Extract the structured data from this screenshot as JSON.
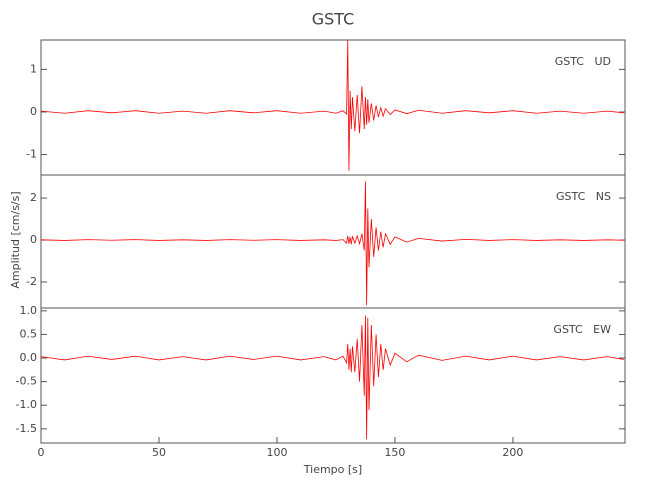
{
  "chart_data": [
    {
      "type": "line",
      "title": "GSTC",
      "annotation": "GSTC   UD",
      "x": [
        0,
        10,
        20,
        30,
        40,
        50,
        60,
        70,
        80,
        90,
        100,
        110,
        120,
        125,
        128,
        129.5,
        130,
        130.5,
        131,
        131.5,
        132,
        133,
        134,
        135,
        136,
        137,
        137.5,
        138,
        138.5,
        139,
        140,
        141,
        142,
        143,
        144,
        145,
        146,
        148,
        150,
        155,
        160,
        170,
        180,
        190,
        200,
        210,
        220,
        230,
        240,
        247
      ],
      "series": [
        {
          "color": "#ff0000",
          "values": [
            0.02,
            -0.03,
            0.03,
            -0.02,
            0.03,
            -0.03,
            0.02,
            -0.03,
            0.03,
            -0.02,
            0.03,
            -0.03,
            0.02,
            -0.03,
            0.03,
            -0.05,
            1.68,
            -1.38,
            0.5,
            -0.4,
            0.35,
            -0.45,
            0.4,
            -0.5,
            0.6,
            -0.4,
            0.35,
            -0.3,
            0.3,
            -0.25,
            0.2,
            -0.2,
            0.15,
            -0.12,
            0.1,
            -0.1,
            0.08,
            -0.06,
            0.05,
            -0.04,
            0.04,
            -0.03,
            0.03,
            -0.02,
            0.03,
            -0.03,
            0.02,
            -0.03,
            0.02,
            -0.02
          ]
        }
      ],
      "xlim": [
        0,
        247.5
      ],
      "ylim": [
        -1.48,
        1.69
      ],
      "yticks": [
        -1,
        0,
        1
      ]
    },
    {
      "type": "line",
      "annotation": "GSTC   NS",
      "ylabel": "Amplitud [cm/s/s]",
      "x": [
        0,
        10,
        20,
        30,
        40,
        50,
        60,
        70,
        80,
        90,
        100,
        110,
        120,
        125,
        128,
        129.5,
        130,
        130.5,
        131,
        131.5,
        132,
        133,
        134,
        135,
        136,
        137,
        137.5,
        138,
        138.5,
        139,
        140,
        141,
        142,
        143,
        144,
        145,
        146,
        148,
        150,
        155,
        160,
        170,
        180,
        190,
        200,
        210,
        220,
        230,
        240,
        247
      ],
      "series": [
        {
          "color": "#ff0000",
          "values": [
            0.01,
            -0.02,
            0.02,
            -0.01,
            0.02,
            -0.02,
            0.01,
            -0.02,
            0.02,
            -0.01,
            0.02,
            -0.02,
            0.01,
            -0.02,
            0.02,
            -0.15,
            0.2,
            -0.18,
            0.15,
            -0.2,
            0.18,
            -0.15,
            0.2,
            -0.18,
            0.3,
            -0.5,
            2.8,
            -3.1,
            1.5,
            -1.3,
            1.0,
            -0.8,
            0.6,
            -0.5,
            0.4,
            -0.35,
            0.3,
            -0.2,
            0.15,
            -0.1,
            0.08,
            -0.05,
            0.03,
            -0.02,
            0.02,
            -0.02,
            0.01,
            -0.02,
            0.01,
            -0.01
          ]
        }
      ],
      "xlim": [
        0,
        247.5
      ],
      "ylim": [
        -3.24,
        3.1
      ],
      "yticks": [
        -2,
        0,
        2
      ]
    },
    {
      "type": "line",
      "annotation": "GSTC   EW",
      "xlabel": "Tiempo [s]",
      "x": [
        0,
        10,
        20,
        30,
        40,
        50,
        60,
        70,
        80,
        90,
        100,
        110,
        120,
        125,
        128,
        129.5,
        130,
        130.5,
        131,
        131.5,
        132,
        133,
        134,
        135,
        136,
        137,
        137.5,
        138,
        138.5,
        139,
        140,
        141,
        142,
        143,
        144,
        145,
        146,
        148,
        150,
        155,
        160,
        170,
        180,
        190,
        200,
        210,
        220,
        230,
        240,
        247
      ],
      "series": [
        {
          "color": "#ff0000",
          "values": [
            0.03,
            -0.04,
            0.04,
            -0.03,
            0.04,
            -0.04,
            0.03,
            -0.04,
            0.04,
            -0.03,
            0.04,
            -0.04,
            0.03,
            -0.04,
            0.04,
            -0.1,
            0.3,
            -0.25,
            0.2,
            -0.3,
            0.25,
            -0.3,
            0.4,
            -0.5,
            0.7,
            -0.8,
            0.9,
            -1.72,
            0.85,
            -1.1,
            0.7,
            -0.6,
            0.5,
            -0.4,
            0.3,
            -0.25,
            0.2,
            -0.15,
            0.1,
            -0.08,
            0.06,
            -0.05,
            0.04,
            -0.04,
            0.04,
            -0.04,
            0.03,
            -0.04,
            0.03,
            -0.03
          ]
        }
      ],
      "xlim": [
        0,
        247.5
      ],
      "ylim": [
        -1.8,
        1.06
      ],
      "yticks": [
        {
          "value": -1.5,
          "label": "-1.5"
        },
        {
          "value": -1,
          "label": "-1.0"
        },
        -0.5,
        {
          "value": 0,
          "label": "0.0"
        },
        0.5,
        {
          "value": 1,
          "label": "1.0"
        }
      ],
      "xticks": [
        0,
        50,
        100,
        150,
        200
      ]
    }
  ]
}
